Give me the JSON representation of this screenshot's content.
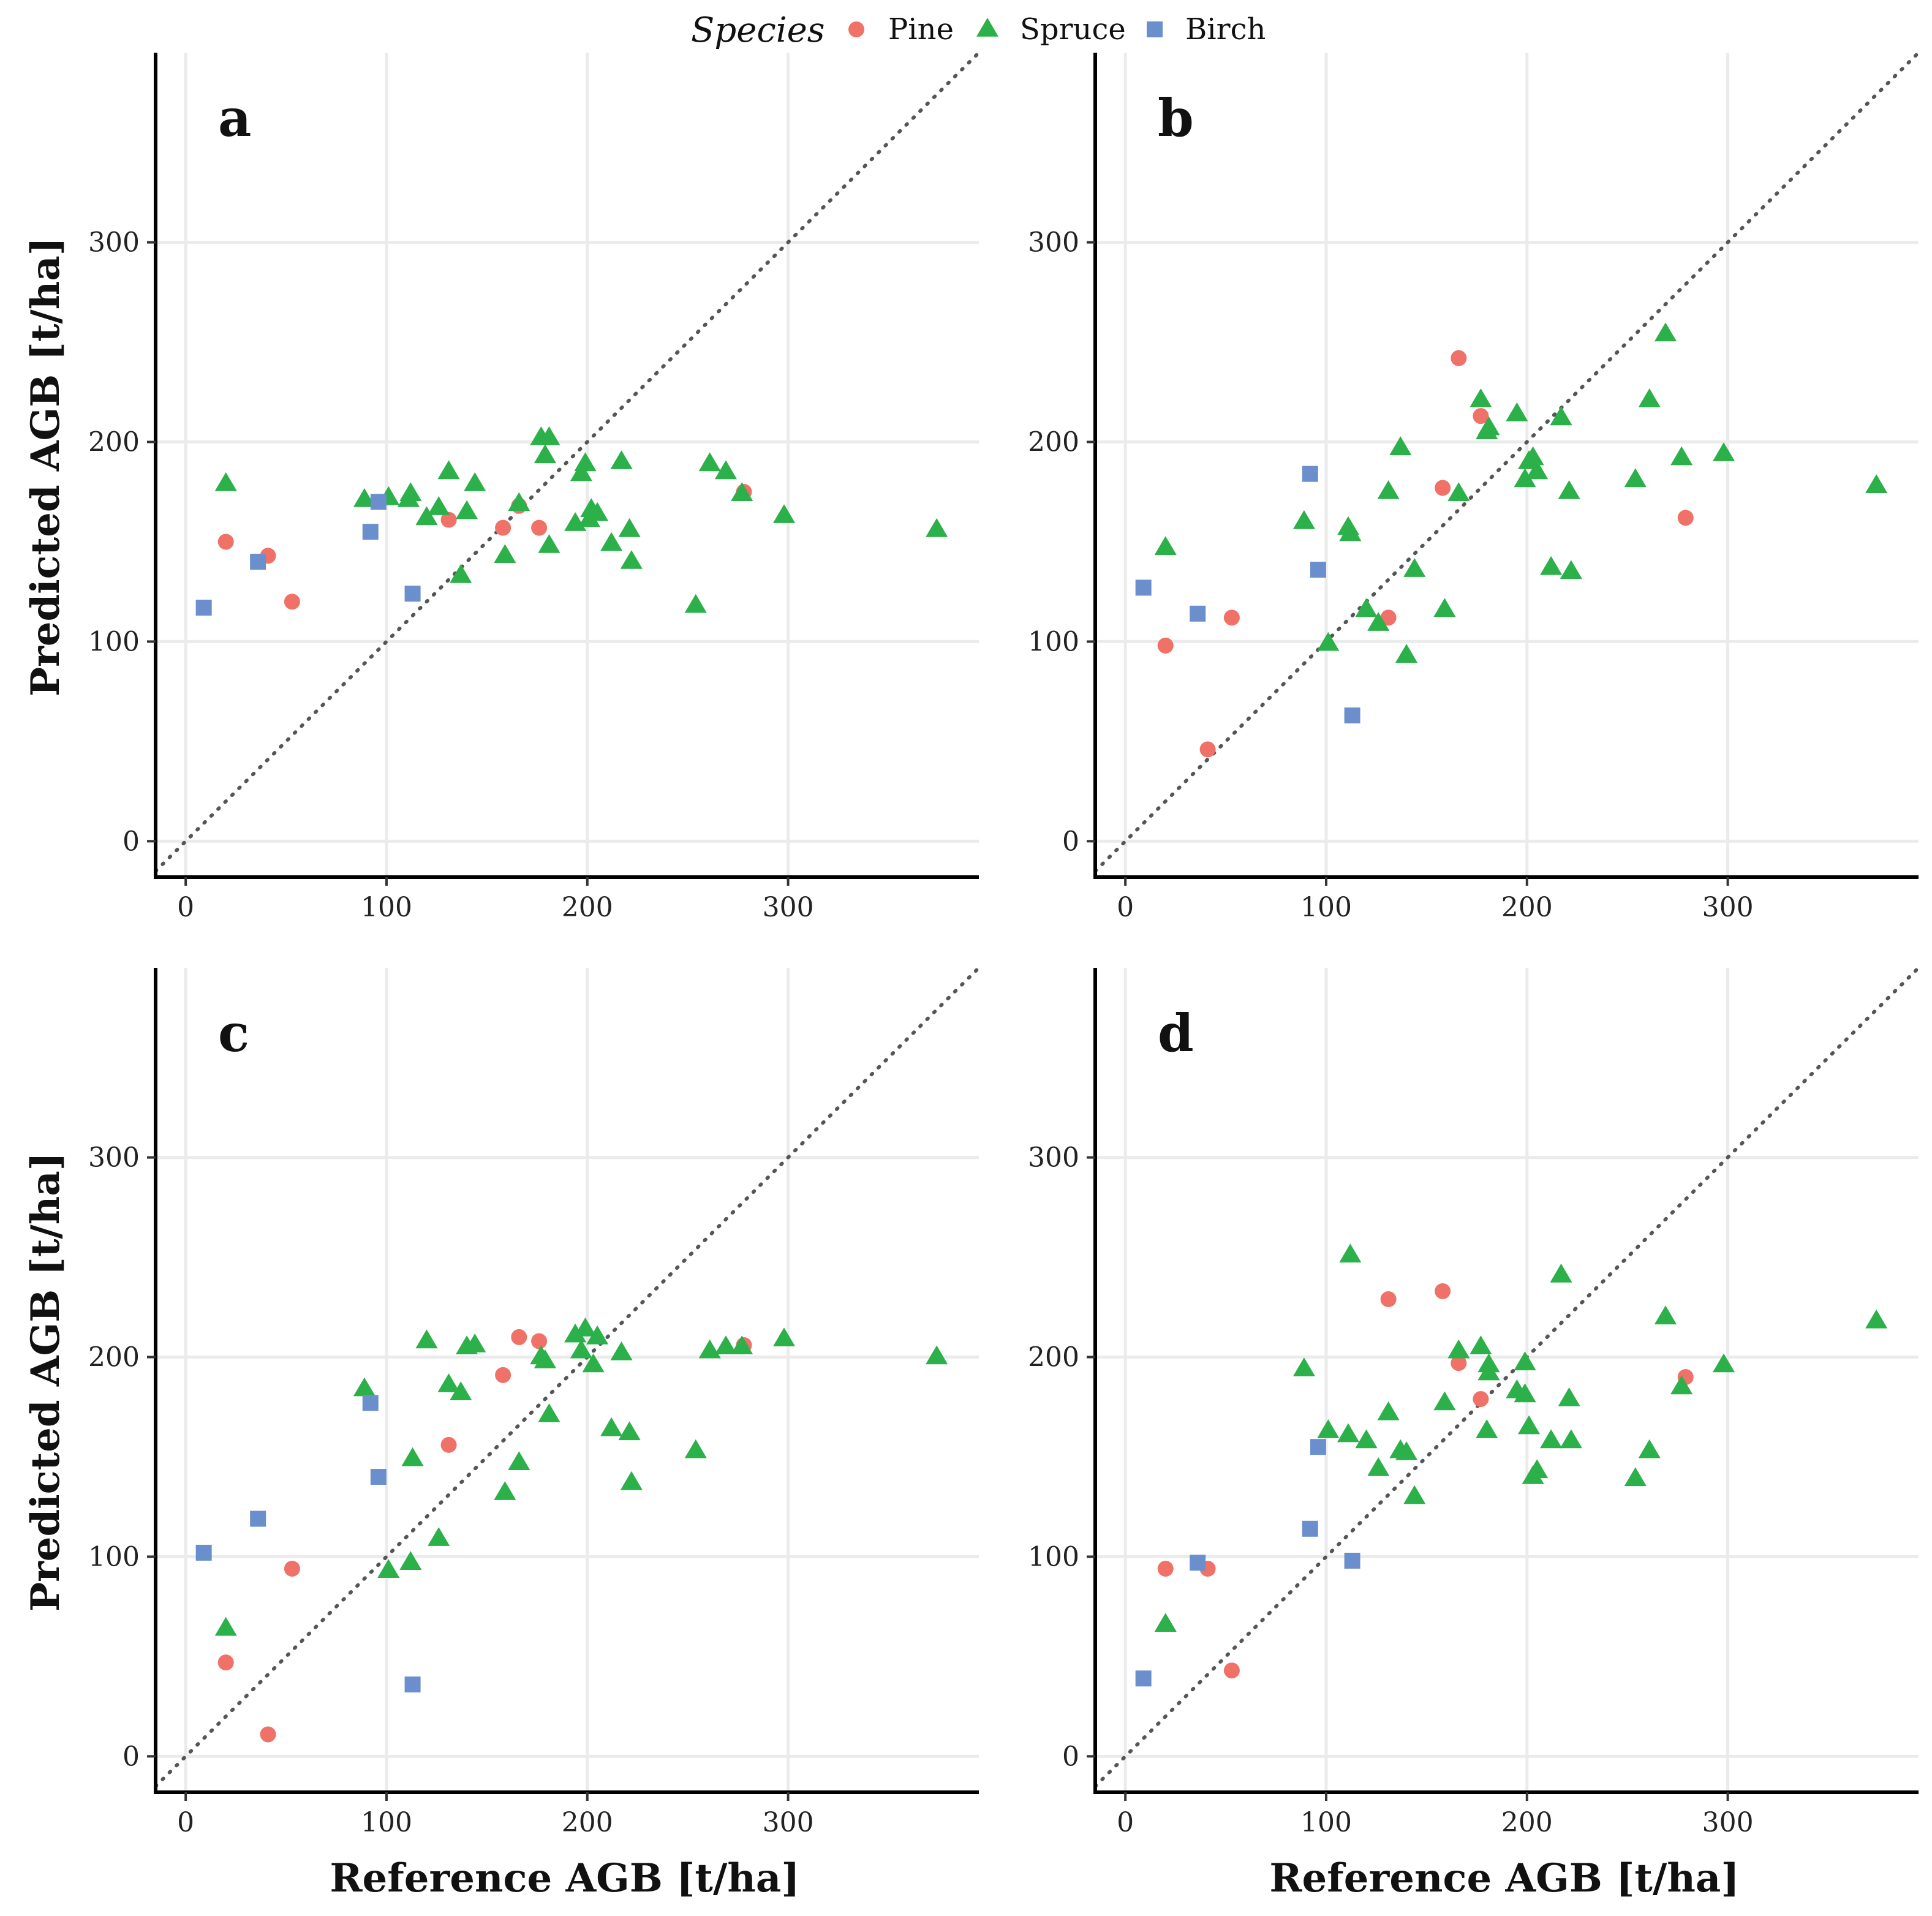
{
  "chart_data": {
    "type": "scatter",
    "legend": {
      "title": "Species",
      "position": "top",
      "entries": [
        {
          "name": "Pine",
          "color": "#F07167",
          "shape": "circle"
        },
        {
          "name": "Spruce",
          "color": "#2BB04A",
          "shape": "triangle"
        },
        {
          "name": "Birch",
          "color": "#6B8FCC",
          "shape": "square"
        }
      ]
    },
    "xlabel": "Reference AGB [t/ha]",
    "ylabel": "Predicted AGB [t/ha]",
    "xlim": [
      -15,
      395
    ],
    "ylim": [
      -18,
      395
    ],
    "xticks": [
      0,
      100,
      200,
      300
    ],
    "yticks": [
      0,
      100,
      200,
      300
    ],
    "reference_line": "y = x (dotted)",
    "grid": true,
    "panels": [
      {
        "label": "a",
        "series": [
          {
            "name": "Pine",
            "points": [
              [
                20,
                150
              ],
              [
                41,
                143
              ],
              [
                53,
                120
              ],
              [
                131,
                161
              ],
              [
                158,
                157
              ],
              [
                166,
                168
              ],
              [
                176,
                157
              ],
              [
                278,
                175
              ]
            ]
          },
          {
            "name": "Spruce",
            "points": [
              [
                20,
                179
              ],
              [
                89,
                171
              ],
              [
                101,
                172
              ],
              [
                111,
                171
              ],
              [
                112,
                174
              ],
              [
                120,
                162
              ],
              [
                126,
                167
              ],
              [
                131,
                185
              ],
              [
                137,
                133
              ],
              [
                140,
                165
              ],
              [
                144,
                179
              ],
              [
                159,
                143
              ],
              [
                166,
                169
              ],
              [
                177,
                202
              ],
              [
                179,
                193
              ],
              [
                181,
                202
              ],
              [
                181,
                148
              ],
              [
                194,
                159
              ],
              [
                197,
                184
              ],
              [
                199,
                189
              ],
              [
                201,
                161
              ],
              [
                202,
                166
              ],
              [
                205,
                164
              ],
              [
                212,
                149
              ],
              [
                217,
                190
              ],
              [
                221,
                156
              ],
              [
                222,
                140
              ],
              [
                254,
                118
              ],
              [
                261,
                189
              ],
              [
                269,
                185
              ],
              [
                277,
                174
              ],
              [
                298,
                163
              ],
              [
                374,
                156
              ]
            ]
          },
          {
            "name": "Birch",
            "points": [
              [
                9,
                117
              ],
              [
                36,
                140
              ],
              [
                92,
                155
              ],
              [
                96,
                170
              ],
              [
                113,
                124
              ]
            ]
          }
        ]
      },
      {
        "label": "b",
        "series": [
          {
            "name": "Pine",
            "points": [
              [
                20,
                98
              ],
              [
                41,
                46
              ],
              [
                53,
                112
              ],
              [
                131,
                112
              ],
              [
                158,
                177
              ],
              [
                166,
                242
              ],
              [
                177,
                213
              ],
              [
                279,
                162
              ]
            ]
          },
          {
            "name": "Spruce",
            "points": [
              [
                20,
                147
              ],
              [
                89,
                160
              ],
              [
                101,
                99
              ],
              [
                111,
                157
              ],
              [
                112,
                154
              ],
              [
                120,
                116
              ],
              [
                126,
                109
              ],
              [
                131,
                175
              ],
              [
                137,
                197
              ],
              [
                140,
                93
              ],
              [
                144,
                136
              ],
              [
                159,
                116
              ],
              [
                166,
                174
              ],
              [
                177,
                221
              ],
              [
                180,
                205
              ],
              [
                181,
                207
              ],
              [
                195,
                214
              ],
              [
                199,
                181
              ],
              [
                201,
                190
              ],
              [
                203,
                192
              ],
              [
                205,
                185
              ],
              [
                212,
                137
              ],
              [
                217,
                212
              ],
              [
                221,
                175
              ],
              [
                222,
                135
              ],
              [
                254,
                181
              ],
              [
                261,
                221
              ],
              [
                269,
                254
              ],
              [
                277,
                192
              ],
              [
                298,
                194
              ],
              [
                374,
                178
              ]
            ]
          },
          {
            "name": "Birch",
            "points": [
              [
                9,
                127
              ],
              [
                36,
                114
              ],
              [
                92,
                184
              ],
              [
                96,
                136
              ],
              [
                113,
                63
              ]
            ]
          }
        ]
      },
      {
        "label": "c",
        "series": [
          {
            "name": "Pine",
            "points": [
              [
                20,
                47
              ],
              [
                41,
                11
              ],
              [
                53,
                94
              ],
              [
                131,
                156
              ],
              [
                158,
                191
              ],
              [
                166,
                210
              ],
              [
                176,
                208
              ],
              [
                278,
                206
              ]
            ]
          },
          {
            "name": "Spruce",
            "points": [
              [
                20,
                64
              ],
              [
                89,
                184
              ],
              [
                101,
                93
              ],
              [
                112,
                97
              ],
              [
                113,
                149
              ],
              [
                120,
                208
              ],
              [
                126,
                109
              ],
              [
                131,
                186
              ],
              [
                137,
                182
              ],
              [
                140,
                205
              ],
              [
                144,
                206
              ],
              [
                159,
                132
              ],
              [
                166,
                147
              ],
              [
                177,
                200
              ],
              [
                179,
                198
              ],
              [
                181,
                171
              ],
              [
                194,
                211
              ],
              [
                197,
                203
              ],
              [
                199,
                214
              ],
              [
                203,
                196
              ],
              [
                205,
                210
              ],
              [
                212,
                164
              ],
              [
                217,
                202
              ],
              [
                221,
                162
              ],
              [
                222,
                137
              ],
              [
                254,
                153
              ],
              [
                261,
                203
              ],
              [
                269,
                205
              ],
              [
                277,
                205
              ],
              [
                298,
                209
              ],
              [
                374,
                200
              ]
            ]
          },
          {
            "name": "Birch",
            "points": [
              [
                9,
                102
              ],
              [
                36,
                119
              ],
              [
                92,
                177
              ],
              [
                96,
                140
              ],
              [
                113,
                36
              ]
            ]
          }
        ]
      },
      {
        "label": "d",
        "series": [
          {
            "name": "Pine",
            "points": [
              [
                20,
                94
              ],
              [
                41,
                94
              ],
              [
                53,
                43
              ],
              [
                131,
                229
              ],
              [
                158,
                233
              ],
              [
                166,
                197
              ],
              [
                177,
                179
              ],
              [
                279,
                190
              ]
            ]
          },
          {
            "name": "Spruce",
            "points": [
              [
                20,
                66
              ],
              [
                89,
                194
              ],
              [
                101,
                163
              ],
              [
                111,
                161
              ],
              [
                112,
                251
              ],
              [
                120,
                158
              ],
              [
                126,
                144
              ],
              [
                131,
                172
              ],
              [
                137,
                153
              ],
              [
                140,
                152
              ],
              [
                144,
                130
              ],
              [
                159,
                177
              ],
              [
                166,
                203
              ],
              [
                177,
                205
              ],
              [
                180,
                163
              ],
              [
                181,
                196
              ],
              [
                181,
                192
              ],
              [
                195,
                183
              ],
              [
                199,
                181
              ],
              [
                199,
                197
              ],
              [
                201,
                165
              ],
              [
                203,
                140
              ],
              [
                205,
                143
              ],
              [
                212,
                158
              ],
              [
                217,
                241
              ],
              [
                221,
                179
              ],
              [
                222,
                158
              ],
              [
                254,
                139
              ],
              [
                261,
                153
              ],
              [
                269,
                220
              ],
              [
                277,
                185
              ],
              [
                298,
                196
              ],
              [
                374,
                218
              ]
            ]
          },
          {
            "name": "Birch",
            "points": [
              [
                9,
                39
              ],
              [
                36,
                97
              ],
              [
                92,
                114
              ],
              [
                96,
                155
              ],
              [
                113,
                98
              ]
            ]
          }
        ]
      }
    ]
  }
}
